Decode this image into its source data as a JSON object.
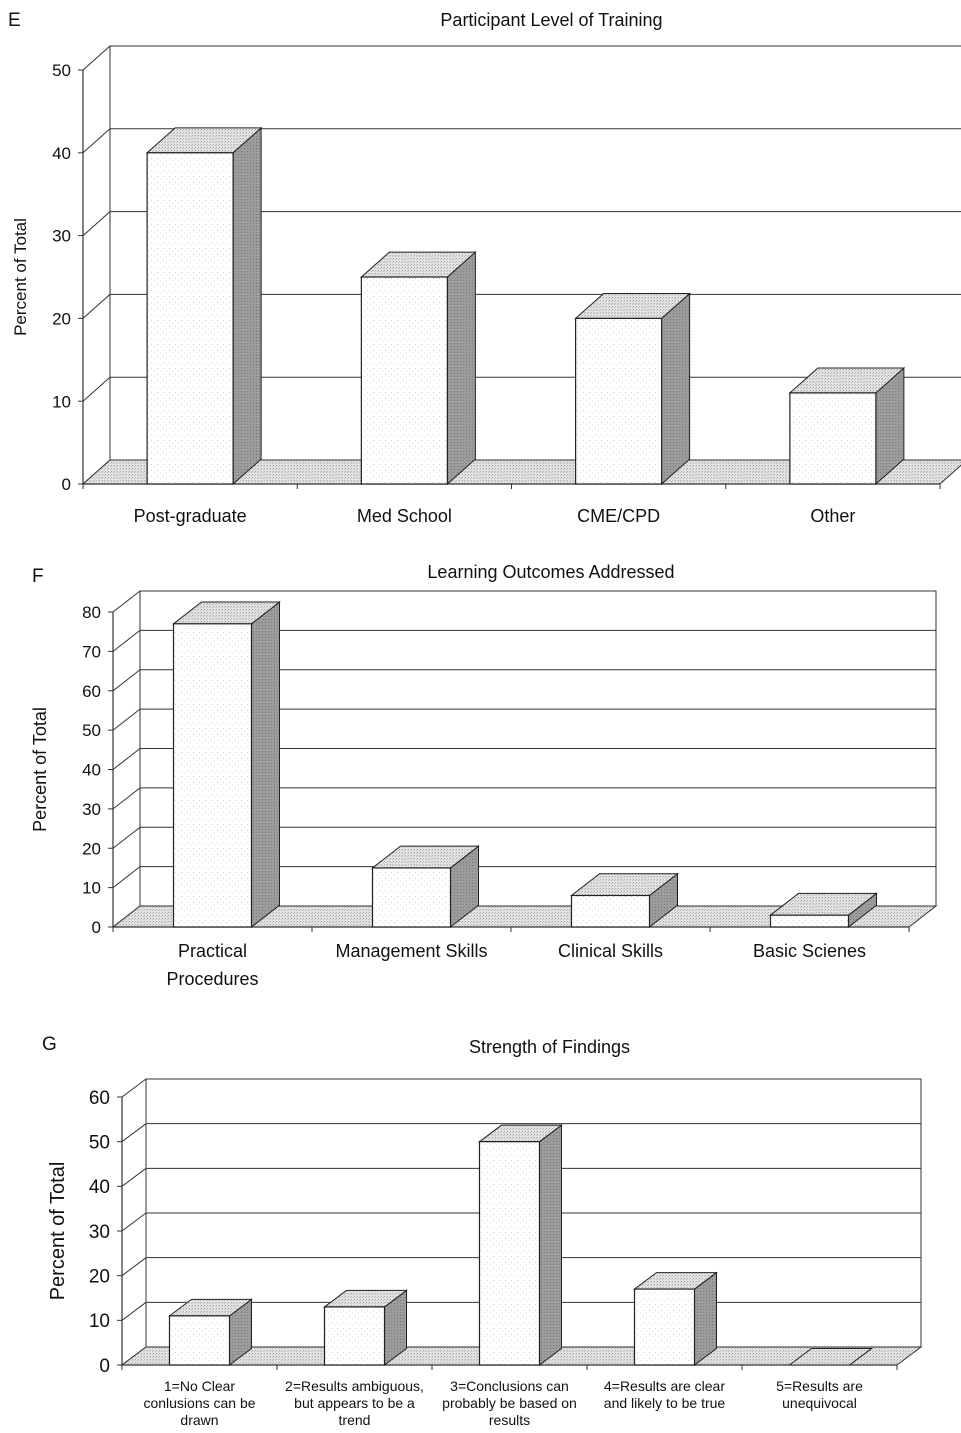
{
  "chart_data": [
    {
      "panel": "E",
      "type": "bar",
      "title": "Participant Level of Training",
      "ylabel": "Percent of Total",
      "ylim": [
        0,
        50
      ],
      "yticks": [
        0,
        10,
        20,
        30,
        40,
        50
      ],
      "grid": true,
      "categories": [
        [
          "Post-graduate"
        ],
        [
          "Med School"
        ],
        [
          "CME/CPD"
        ],
        [
          "Other"
        ]
      ],
      "values": [
        40,
        25,
        20,
        11
      ]
    },
    {
      "panel": "F",
      "type": "bar",
      "title": "Learning Outcomes Addressed",
      "ylabel": "Percent of Total",
      "ylim": [
        0,
        80
      ],
      "yticks": [
        0,
        10,
        20,
        30,
        40,
        50,
        60,
        70,
        80
      ],
      "grid": true,
      "categories": [
        [
          "Practical",
          "Procedures"
        ],
        [
          "Management Skills"
        ],
        [
          "Clinical Skills"
        ],
        [
          "Basic Scienes"
        ]
      ],
      "values": [
        77,
        15,
        8,
        3
      ]
    },
    {
      "panel": "G",
      "type": "bar",
      "title": "Strength of Findings",
      "ylabel": "Percent of Total",
      "ylim": [
        0,
        60
      ],
      "yticks": [
        0,
        10,
        20,
        30,
        40,
        50,
        60
      ],
      "grid": true,
      "categories": [
        [
          "1=No Clear",
          "conlusions can be",
          "drawn"
        ],
        [
          "2=Results ambiguous,",
          "but appears to be a",
          "trend"
        ],
        [
          "3=Conclusions can",
          "probably be based on",
          "results"
        ],
        [
          "4=Results are clear",
          "and likely to be true"
        ],
        [
          "5=Results are",
          "unequivocal"
        ]
      ],
      "values": [
        11,
        13,
        50,
        17,
        0
      ]
    }
  ]
}
